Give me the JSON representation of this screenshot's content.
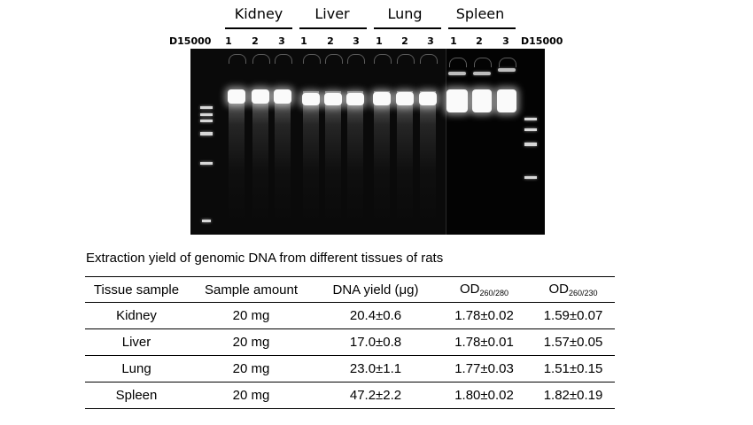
{
  "figure": {
    "marker_left": "D15000",
    "marker_right": "D15000",
    "groups": [
      {
        "name": "Kidney",
        "lanes": [
          "1",
          "2",
          "3"
        ]
      },
      {
        "name": "Liver",
        "lanes": [
          "1",
          "2",
          "3"
        ]
      },
      {
        "name": "Lung",
        "lanes": [
          "1",
          "2",
          "3"
        ]
      },
      {
        "name": "Spleen",
        "lanes": [
          "1",
          "2",
          "3"
        ]
      }
    ]
  },
  "table": {
    "caption": "Extraction yield of genomic DNA from different tissues of rats",
    "headers": {
      "tissue": "Tissue sample",
      "amount": "Sample amount",
      "yield": "DNA yield (μg)",
      "od1_main": "OD",
      "od1_sub": "260/280",
      "od2_main": "OD",
      "od2_sub": "260/230"
    },
    "rows": [
      {
        "tissue": "Kidney",
        "amount": "20 mg",
        "yield": "20.4±0.6",
        "od280": "1.78±0.02",
        "od230": "1.59±0.07"
      },
      {
        "tissue": "Liver",
        "amount": "20 mg",
        "yield": "17.0±0.8",
        "od280": "1.78±0.01",
        "od230": "1.57±0.05"
      },
      {
        "tissue": "Lung",
        "amount": "20 mg",
        "yield": "23.0±1.1",
        "od280": "1.77±0.03",
        "od230": "1.51±0.15"
      },
      {
        "tissue": "Spleen",
        "amount": "20 mg",
        "yield": "47.2±2.2",
        "od280": "1.80±0.02",
        "od230": "1.82±0.19"
      }
    ]
  }
}
